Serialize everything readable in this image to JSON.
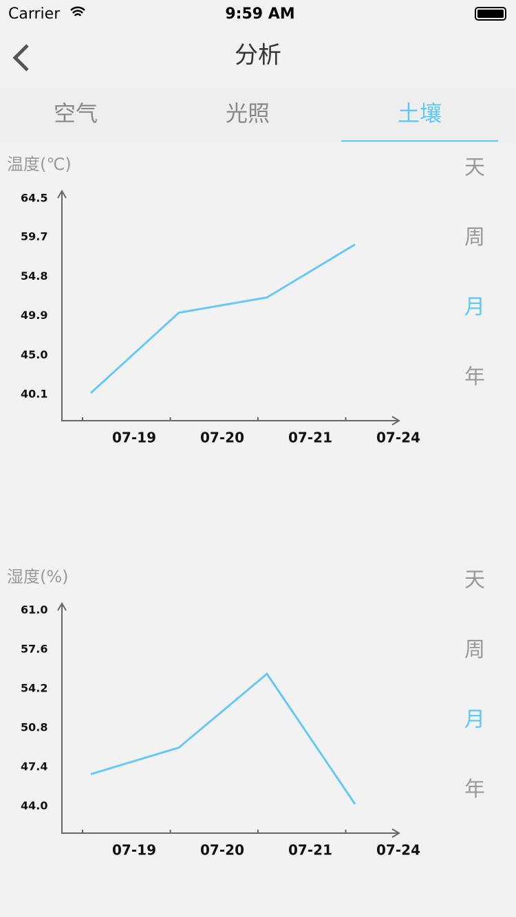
{
  "status_bar": {
    "carrier": "Carrier",
    "time": "9:59 AM"
  },
  "nav": {
    "title": "分析"
  },
  "tabs": {
    "items": [
      "空气",
      "光照",
      "土壤"
    ],
    "selected": 2
  },
  "chart_data": [
    {
      "type": "line",
      "y_label": "温度(℃)",
      "categories": [
        "07-19",
        "07-20",
        "07-21",
        "07-24"
      ],
      "values": [
        40.3,
        50.3,
        52.2,
        58.8
      ],
      "color": "#66c8f8",
      "ylim": [
        36.85,
        65.45
      ],
      "yticks": [
        40.1,
        {
          "value": 45,
          "label": "45.0"
        },
        49.9,
        54.8,
        59.7,
        64.5
      ],
      "period_options": [
        "天",
        "周",
        "月",
        "年"
      ],
      "period_selected": 2
    },
    {
      "type": "line",
      "y_label": "湿度(%)",
      "categories": [
        "07-19",
        "07-20",
        "07-21",
        "07-24"
      ],
      "values": [
        46.8,
        49.1,
        55.5,
        44.2
      ],
      "color": "#66c8f8",
      "ylim": [
        41.68,
        61.6
      ],
      "yticks": [
        {
          "value": 44,
          "label": "44.0"
        },
        47.4,
        50.8,
        54.2,
        57.6,
        {
          "value": 61,
          "label": "61.0"
        }
      ],
      "period_options": [
        "天",
        "周",
        "月",
        "年"
      ],
      "period_selected": 2
    }
  ]
}
